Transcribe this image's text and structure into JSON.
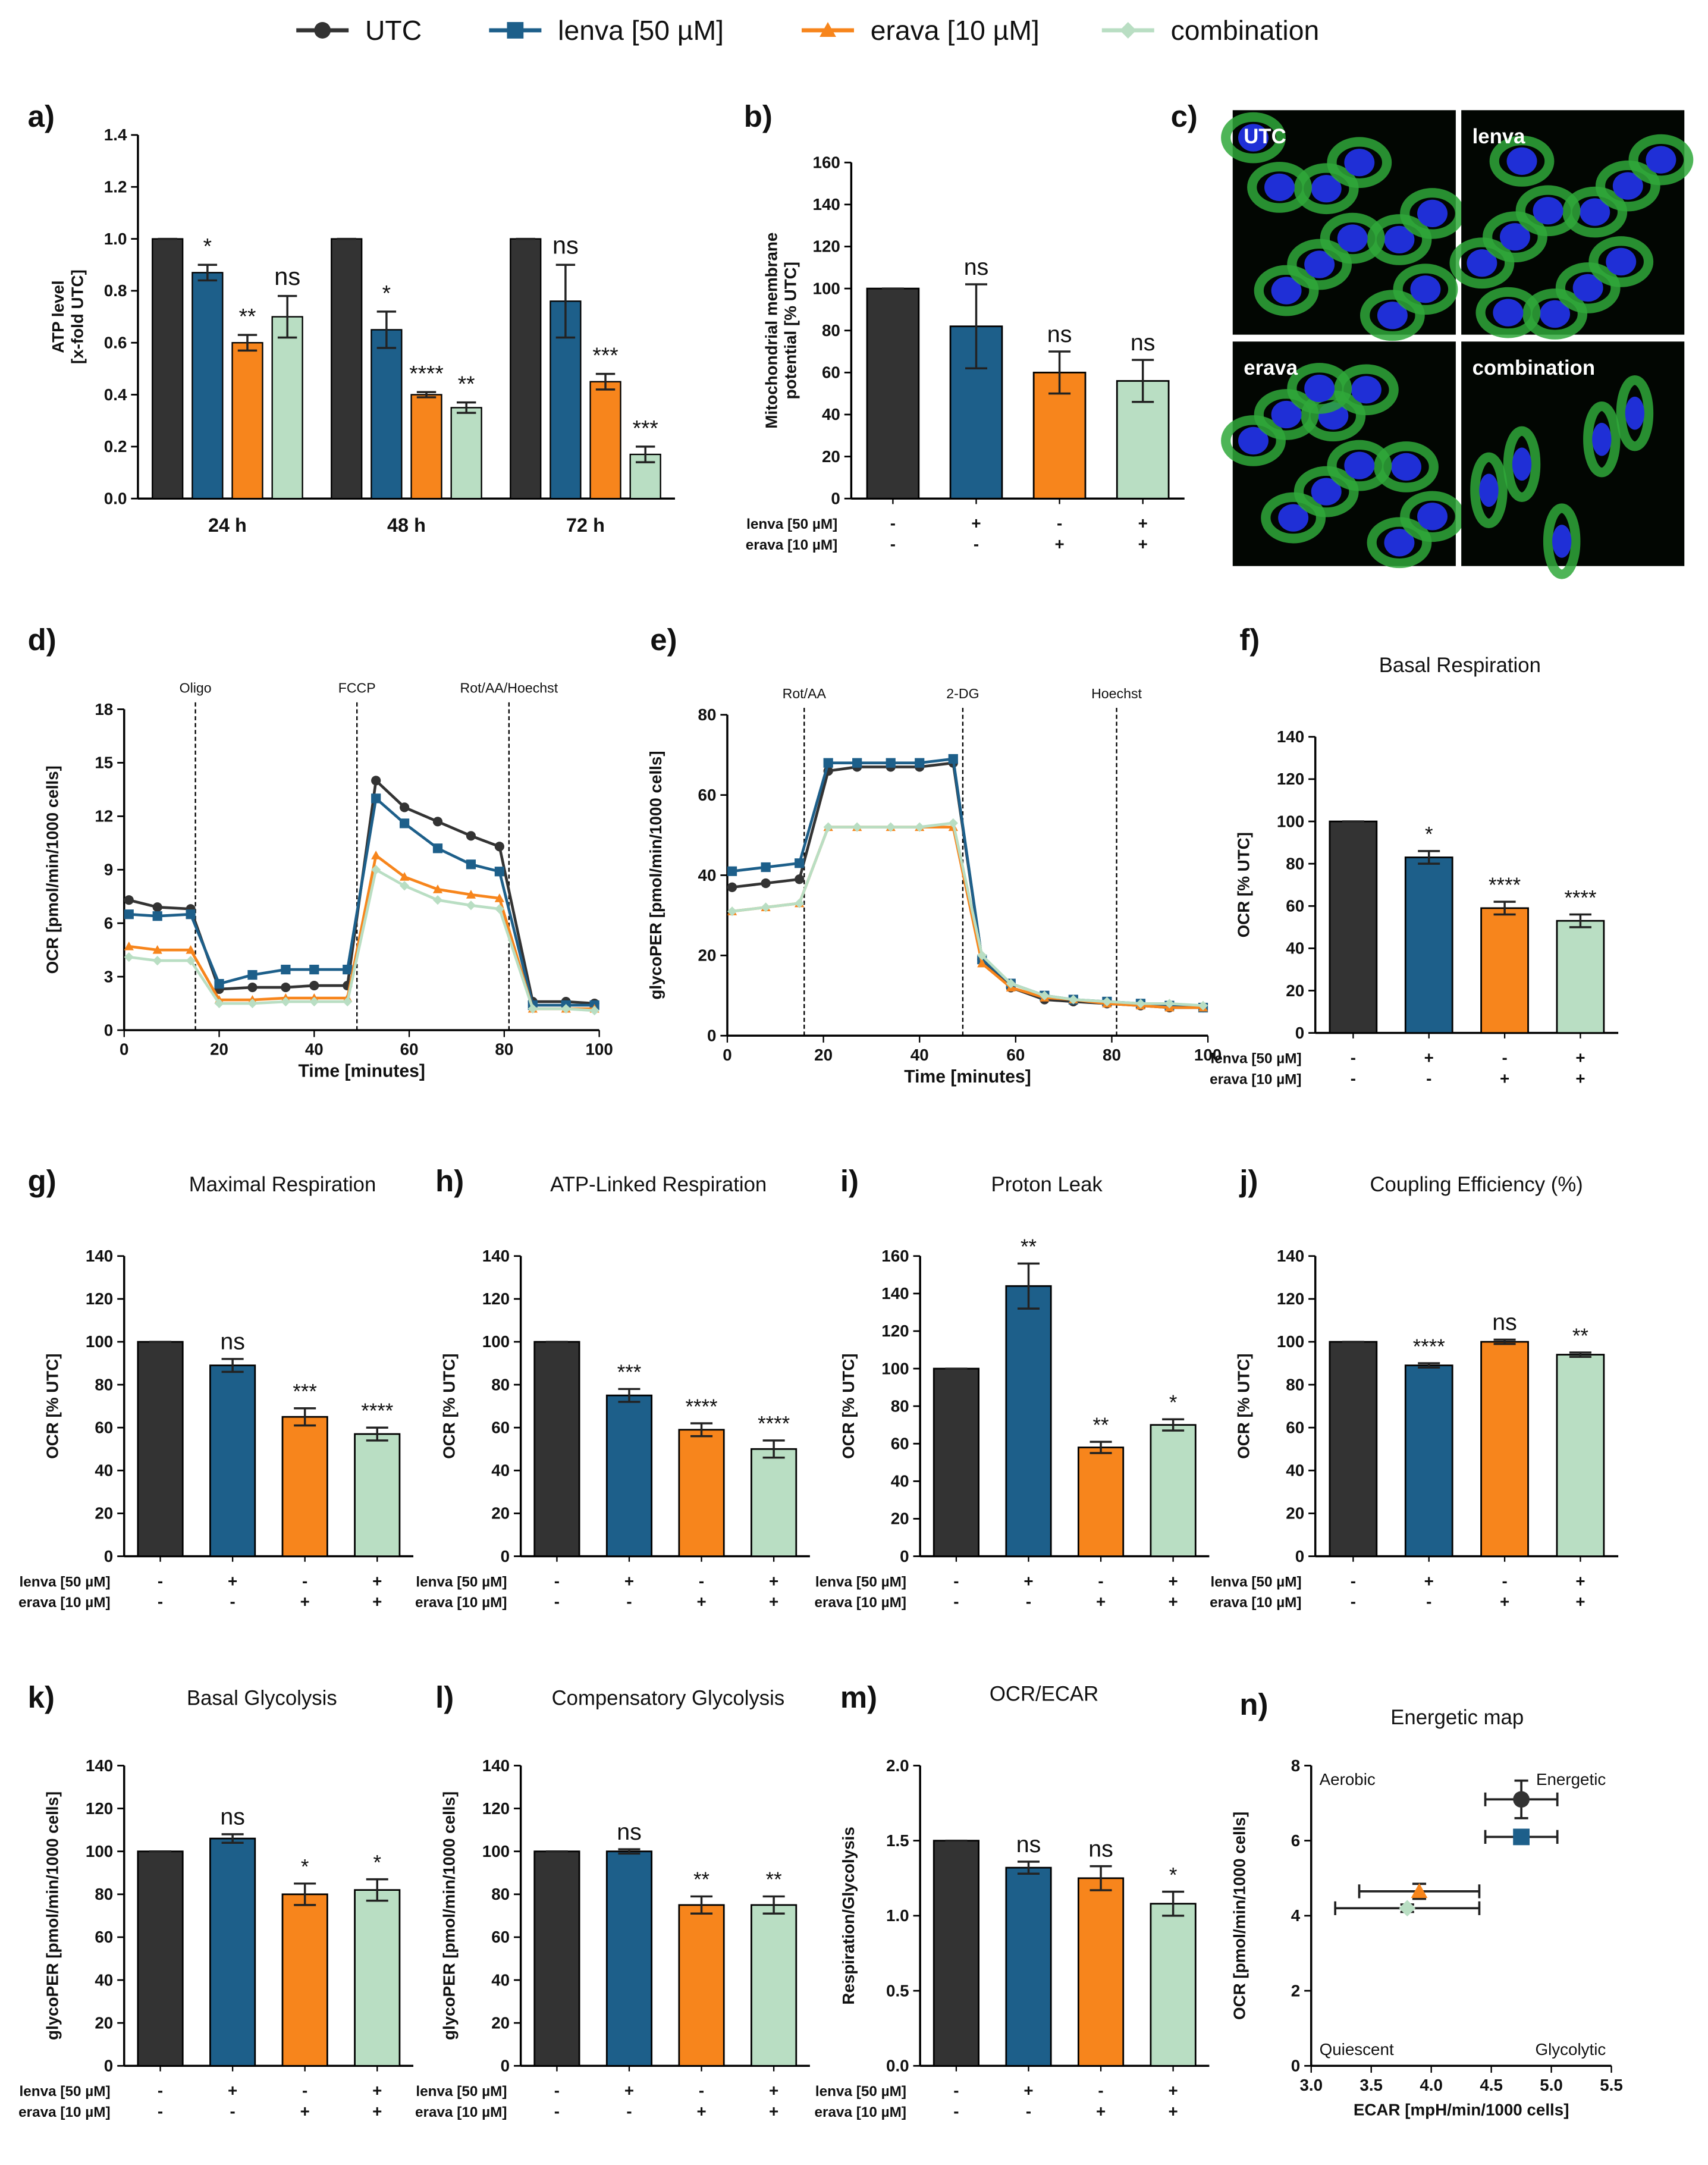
{
  "legend": {
    "series": [
      {
        "name": "UTC",
        "color": "#333333"
      },
      {
        "name": "lenva [50 µM]",
        "color": "#1d5f8a"
      },
      {
        "name": "erava [10 µM]",
        "color": "#f7851c"
      },
      {
        "name": "combination",
        "color": "#b9dec3"
      }
    ]
  },
  "chart_data": [
    {
      "type": "grouped-bar",
      "panel": "a)",
      "y_label": [
        "ATP level",
        "[x-fold UTC]"
      ],
      "categories": [
        "24 h",
        "48 h",
        "72 h"
      ],
      "series": [
        {
          "name": "UTC",
          "values": [
            1,
            1,
            1
          ],
          "errors": [
            0,
            0,
            0
          ],
          "sig": [
            null,
            null,
            null
          ]
        },
        {
          "name": "lenva [50 µM]",
          "values": [
            0.87,
            0.65,
            0.76
          ],
          "errors": [
            0.03,
            0.07,
            0.14
          ],
          "sig": [
            "*",
            "*",
            "ns"
          ]
        },
        {
          "name": "erava [10 µM]",
          "values": [
            0.6,
            0.4,
            0.45
          ],
          "errors": [
            0.03,
            0.01,
            0.03
          ],
          "sig": [
            "**",
            "****",
            "***"
          ]
        },
        {
          "name": "combination",
          "values": [
            0.7,
            0.35,
            0.17
          ],
          "errors": [
            0.08,
            0.02,
            0.03
          ],
          "sig": [
            "ns",
            "**",
            "***"
          ]
        }
      ],
      "ylim": [
        0,
        1.4
      ],
      "yticks": [
        {
          "value": 0,
          "label": "0.0"
        },
        0.2,
        0.4,
        0.6,
        0.8,
        {
          "value": 1,
          "label": "1.0"
        },
        1.2,
        1.4
      ]
    },
    {
      "type": "bar",
      "panel": "b)",
      "y_label": [
        "Mitochondrial membrane",
        "potential [% UTC]"
      ],
      "values": [
        100,
        82,
        60,
        56
      ],
      "errors": [
        0,
        20,
        10,
        10
      ],
      "sig": [
        null,
        "ns",
        "ns",
        "ns"
      ],
      "treatments": [
        {
          "label": "lenva [50 µM]",
          "marks": [
            "-",
            "+",
            "-",
            "+"
          ]
        },
        {
          "label": "erava [10 µM]",
          "marks": [
            "-",
            "-",
            "+",
            "+"
          ]
        }
      ],
      "ylim": [
        0,
        160
      ],
      "yticks": [
        0,
        20,
        40,
        60,
        80,
        100,
        120,
        140,
        160
      ]
    },
    {
      "type": "image",
      "panel": "c)",
      "labels": [
        "UTC",
        "lenva",
        "erava",
        "combination"
      ]
    },
    {
      "type": "line",
      "panel": "d)",
      "x_label": "Time [minutes]",
      "y_label": [
        "OCR [pmol/min/1000 cells]"
      ],
      "x": [
        1,
        7,
        14,
        20,
        27,
        34,
        40,
        47,
        53,
        59,
        66,
        73,
        79,
        86,
        93,
        99
      ],
      "series": [
        {
          "name": "UTC",
          "values": [
            7.3,
            6.9,
            6.8,
            2.3,
            2.4,
            2.4,
            2.5,
            2.5,
            14.0,
            12.5,
            11.7,
            10.9,
            10.3,
            1.6,
            1.6,
            1.5
          ]
        },
        {
          "name": "lenva [50 µM]",
          "values": [
            6.5,
            6.4,
            6.5,
            2.6,
            3.1,
            3.4,
            3.4,
            3.4,
            13.0,
            11.6,
            10.2,
            9.3,
            8.9,
            1.4,
            1.4,
            1.4
          ]
        },
        {
          "name": "erava [10 µM]",
          "values": [
            4.7,
            4.5,
            4.5,
            1.7,
            1.7,
            1.8,
            1.8,
            1.8,
            9.8,
            8.6,
            7.9,
            7.6,
            7.4,
            1.2,
            1.2,
            1.2
          ]
        },
        {
          "name": "combination",
          "values": [
            4.1,
            3.9,
            3.9,
            1.5,
            1.5,
            1.6,
            1.6,
            1.6,
            9.0,
            8.1,
            7.3,
            7.0,
            6.8,
            1.2,
            1.2,
            1.1
          ]
        }
      ],
      "injections": [
        {
          "x": 15,
          "label": "Oligo"
        },
        {
          "x": 49,
          "label": "FCCP"
        },
        {
          "x": 81,
          "label": "Rot/AA/Hoechst"
        }
      ],
      "xlim": [
        0,
        100
      ],
      "xticks": [
        0,
        20,
        40,
        60,
        80,
        100
      ],
      "ylim": [
        0,
        18
      ],
      "yticks": [
        0,
        3,
        6,
        9,
        12,
        15,
        18
      ]
    },
    {
      "type": "line",
      "panel": "e)",
      "x_label": "Time [minutes]",
      "y_label": [
        "glycoPER [pmol/min/1000 cells]"
      ],
      "x": [
        1,
        8,
        15,
        21,
        27,
        34,
        40,
        47,
        53,
        59,
        66,
        72,
        79,
        86,
        92,
        99
      ],
      "series": [
        {
          "name": "UTC",
          "values": [
            37,
            38,
            39,
            66,
            67,
            67,
            67,
            68,
            19,
            12,
            9,
            8.5,
            8,
            7.5,
            7,
            7
          ]
        },
        {
          "name": "lenva [50 µM]",
          "values": [
            41,
            42,
            43,
            68,
            68,
            68,
            68,
            69,
            19,
            13,
            10,
            9,
            8.5,
            8,
            7.5,
            7
          ]
        },
        {
          "name": "erava [10 µM]",
          "values": [
            31,
            32,
            33,
            52,
            52,
            52,
            52,
            52,
            18,
            12,
            9.5,
            9,
            8,
            7.5,
            7,
            7
          ]
        },
        {
          "name": "combination",
          "values": [
            31,
            32,
            33,
            52,
            52,
            52,
            52,
            53,
            20,
            13,
            10,
            9,
            8.5,
            8,
            8,
            7.5
          ]
        }
      ],
      "injections": [
        {
          "x": 16,
          "label": "Rot/AA"
        },
        {
          "x": 49,
          "label": "2-DG"
        },
        {
          "x": 81,
          "label": "Hoechst"
        }
      ],
      "xlim": [
        0,
        100
      ],
      "xticks": [
        0,
        20,
        40,
        60,
        80,
        100
      ],
      "ylim": [
        0,
        80
      ],
      "yticks": [
        0,
        20,
        40,
        60,
        80
      ]
    },
    {
      "type": "bar",
      "panel": "f)",
      "title": "Basal Respiration",
      "y_label": [
        "OCR [% UTC]"
      ],
      "values": [
        100,
        83,
        59,
        53
      ],
      "errors": [
        0,
        3,
        3,
        3
      ],
      "sig": [
        null,
        "*",
        "****",
        "****"
      ],
      "treatments": [
        {
          "label": "lenva [50 µM]",
          "marks": [
            "-",
            "+",
            "-",
            "+"
          ]
        },
        {
          "label": "erava [10 µM]",
          "marks": [
            "-",
            "-",
            "+",
            "+"
          ]
        }
      ],
      "ylim": [
        0,
        140
      ],
      "yticks": [
        0,
        20,
        40,
        60,
        80,
        100,
        120,
        140
      ]
    },
    {
      "type": "bar",
      "panel": "g)",
      "title": "Maximal Respiration",
      "y_label": [
        "OCR [% UTC]"
      ],
      "values": [
        100,
        89,
        65,
        57
      ],
      "errors": [
        0,
        3,
        4,
        3
      ],
      "sig": [
        null,
        "ns",
        "***",
        "****"
      ],
      "treatments": [
        {
          "label": "lenva [50 µM]",
          "marks": [
            "-",
            "+",
            "-",
            "+"
          ]
        },
        {
          "label": "erava [10 µM]",
          "marks": [
            "-",
            "-",
            "+",
            "+"
          ]
        }
      ],
      "ylim": [
        0,
        140
      ],
      "yticks": [
        0,
        20,
        40,
        60,
        80,
        100,
        120,
        140
      ]
    },
    {
      "type": "bar",
      "panel": "h)",
      "title": "ATP-Linked Respiration",
      "y_label": [
        "OCR [% UTC]"
      ],
      "values": [
        100,
        75,
        59,
        50
      ],
      "errors": [
        0,
        3,
        3,
        4
      ],
      "sig": [
        null,
        "***",
        "****",
        "****"
      ],
      "treatments": [
        {
          "label": "lenva [50 µM]",
          "marks": [
            "-",
            "+",
            "-",
            "+"
          ]
        },
        {
          "label": "erava [10 µM]",
          "marks": [
            "-",
            "-",
            "+",
            "+"
          ]
        }
      ],
      "ylim": [
        0,
        140
      ],
      "yticks": [
        0,
        20,
        40,
        60,
        80,
        100,
        120,
        140
      ]
    },
    {
      "type": "bar",
      "panel": "i)",
      "title": "Proton Leak",
      "y_label": [
        "OCR [% UTC]"
      ],
      "values": [
        100,
        144,
        58,
        70
      ],
      "errors": [
        0,
        12,
        3,
        3
      ],
      "sig": [
        null,
        "**",
        "**",
        "*"
      ],
      "treatments": [
        {
          "label": "lenva [50 µM]",
          "marks": [
            "-",
            "+",
            "-",
            "+"
          ]
        },
        {
          "label": "erava [10 µM]",
          "marks": [
            "-",
            "-",
            "+",
            "+"
          ]
        }
      ],
      "ylim": [
        0,
        160
      ],
      "yticks": [
        0,
        20,
        40,
        60,
        80,
        100,
        120,
        140,
        160
      ]
    },
    {
      "type": "bar",
      "panel": "j)",
      "title": "Coupling Efficiency (%)",
      "y_label": [
        "OCR [% UTC]"
      ],
      "values": [
        100,
        89,
        100,
        94
      ],
      "errors": [
        0,
        1,
        1,
        1
      ],
      "sig": [
        null,
        "****",
        "ns",
        "**"
      ],
      "treatments": [
        {
          "label": "lenva [50 µM]",
          "marks": [
            "-",
            "+",
            "-",
            "+"
          ]
        },
        {
          "label": "erava [10 µM]",
          "marks": [
            "-",
            "-",
            "+",
            "+"
          ]
        }
      ],
      "ylim": [
        0,
        140
      ],
      "yticks": [
        0,
        20,
        40,
        60,
        80,
        100,
        120,
        140
      ]
    },
    {
      "type": "bar",
      "panel": "k)",
      "title": "Basal Glycolysis",
      "y_label": [
        "glycoPER [pmol/min/1000 cells]"
      ],
      "values": [
        100,
        106,
        80,
        82
      ],
      "errors": [
        0,
        2,
        5,
        5
      ],
      "sig": [
        null,
        "ns",
        "*",
        "*"
      ],
      "treatments": [
        {
          "label": "lenva [50 µM]",
          "marks": [
            "-",
            "+",
            "-",
            "+"
          ]
        },
        {
          "label": "erava [10 µM]",
          "marks": [
            "-",
            "-",
            "+",
            "+"
          ]
        }
      ],
      "ylim": [
        0,
        140
      ],
      "yticks": [
        0,
        20,
        40,
        60,
        80,
        100,
        120,
        140
      ]
    },
    {
      "type": "bar",
      "panel": "l)",
      "title": "Compensatory Glycolysis",
      "y_label": [
        "glycoPER [pmol/min/1000 cells]"
      ],
      "values": [
        100,
        100,
        75,
        75
      ],
      "errors": [
        0,
        1,
        4,
        4
      ],
      "sig": [
        null,
        "ns",
        "**",
        "**"
      ],
      "treatments": [
        {
          "label": "lenva [50 µM]",
          "marks": [
            "-",
            "+",
            "-",
            "+"
          ]
        },
        {
          "label": "erava [10 µM]",
          "marks": [
            "-",
            "-",
            "+",
            "+"
          ]
        }
      ],
      "ylim": [
        0,
        140
      ],
      "yticks": [
        0,
        20,
        40,
        60,
        80,
        100,
        120,
        140
      ]
    },
    {
      "type": "bar",
      "panel": "m)",
      "title": "OCR/ECAR",
      "y_label": [
        "Respiration/Glycolysis"
      ],
      "values": [
        1.5,
        1.32,
        1.25,
        1.08
      ],
      "errors": [
        0,
        0.04,
        0.08,
        0.08
      ],
      "sig": [
        null,
        "ns",
        "ns",
        "*"
      ],
      "treatments": [
        {
          "label": "lenva [50 µM]",
          "marks": [
            "-",
            "+",
            "-",
            "+"
          ]
        },
        {
          "label": "erava [10 µM]",
          "marks": [
            "-",
            "-",
            "+",
            "+"
          ]
        }
      ],
      "ylim": [
        0,
        2
      ],
      "yticks": [
        {
          "value": 0,
          "label": "0.0"
        },
        0.5,
        {
          "value": 1,
          "label": "1.0"
        },
        1.5,
        {
          "value": 2,
          "label": "2.0"
        }
      ]
    },
    {
      "type": "scatter",
      "panel": "n)",
      "title": "Energetic map",
      "x_label": "ECAR [mpH/min/1000 cells]",
      "y_label": [
        "OCR [pmol/min/1000 cells]"
      ],
      "points": [
        {
          "name": "UTC",
          "x": 4.75,
          "y": 7.1,
          "xerr": 0.3,
          "yerr": 0.5
        },
        {
          "name": "lenva [50 µM]",
          "x": 4.75,
          "y": 6.1,
          "xerr": 0.3,
          "yerr": 0.1
        },
        {
          "name": "erava [10 µM]",
          "x": 3.9,
          "y": 4.65,
          "xerr": 0.5,
          "yerr": 0.2
        },
        {
          "name": "combination",
          "x": 3.8,
          "y": 4.2,
          "xerr": 0.6,
          "yerr": 0.1
        }
      ],
      "quadrants": [
        "Aerobic",
        "Energetic",
        "Quiescent",
        "Glycolytic"
      ],
      "xlim": [
        3,
        5.5
      ],
      "xticks": [
        {
          "value": 3,
          "label": "3.0"
        },
        3.5,
        {
          "value": 4,
          "label": "4.0"
        },
        4.5,
        {
          "value": 5,
          "label": "5.0"
        },
        5.5
      ],
      "ylim": [
        0,
        8
      ],
      "yticks": [
        0,
        2,
        4,
        6,
        8
      ]
    }
  ]
}
